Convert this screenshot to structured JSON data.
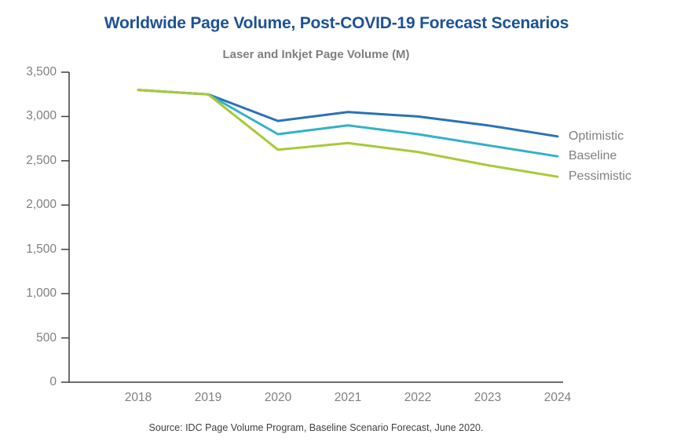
{
  "page": {
    "title": "Worldwide Page Volume, Post-COVID-19 Forecast Scenarios",
    "title_color": "#1d5296",
    "source": "Source:  IDC Page Volume Program, Baseline Scenario Forecast, June 2020."
  },
  "chart_data": {
    "type": "line",
    "title": "Laser and Inkjet Page Volume (M)",
    "subtitle_color": "#7f7f7f",
    "categories": [
      "2018",
      "2019",
      "2020",
      "2021",
      "2022",
      "2023",
      "2024"
    ],
    "series": [
      {
        "name": "Optimistic",
        "color": "#2a72b8",
        "values": [
          3300,
          3250,
          2950,
          3050,
          3000,
          2900,
          2775
        ]
      },
      {
        "name": "Baseline",
        "color": "#35b1c9",
        "values": [
          3300,
          3250,
          2800,
          2900,
          2800,
          2675,
          2550
        ]
      },
      {
        "name": "Pessimistic",
        "color": "#a9c938",
        "values": [
          3300,
          3250,
          2625,
          2700,
          2600,
          2450,
          2320
        ]
      }
    ],
    "ylim": [
      0,
      3500
    ],
    "ytick_step": 500,
    "yticks": [
      0,
      500,
      1000,
      1500,
      2000,
      2500,
      3000,
      3500
    ],
    "grid": false,
    "legend_position": "right-of-line-ends",
    "axis_color": "#3f3f3f",
    "label_color": "#808080"
  }
}
